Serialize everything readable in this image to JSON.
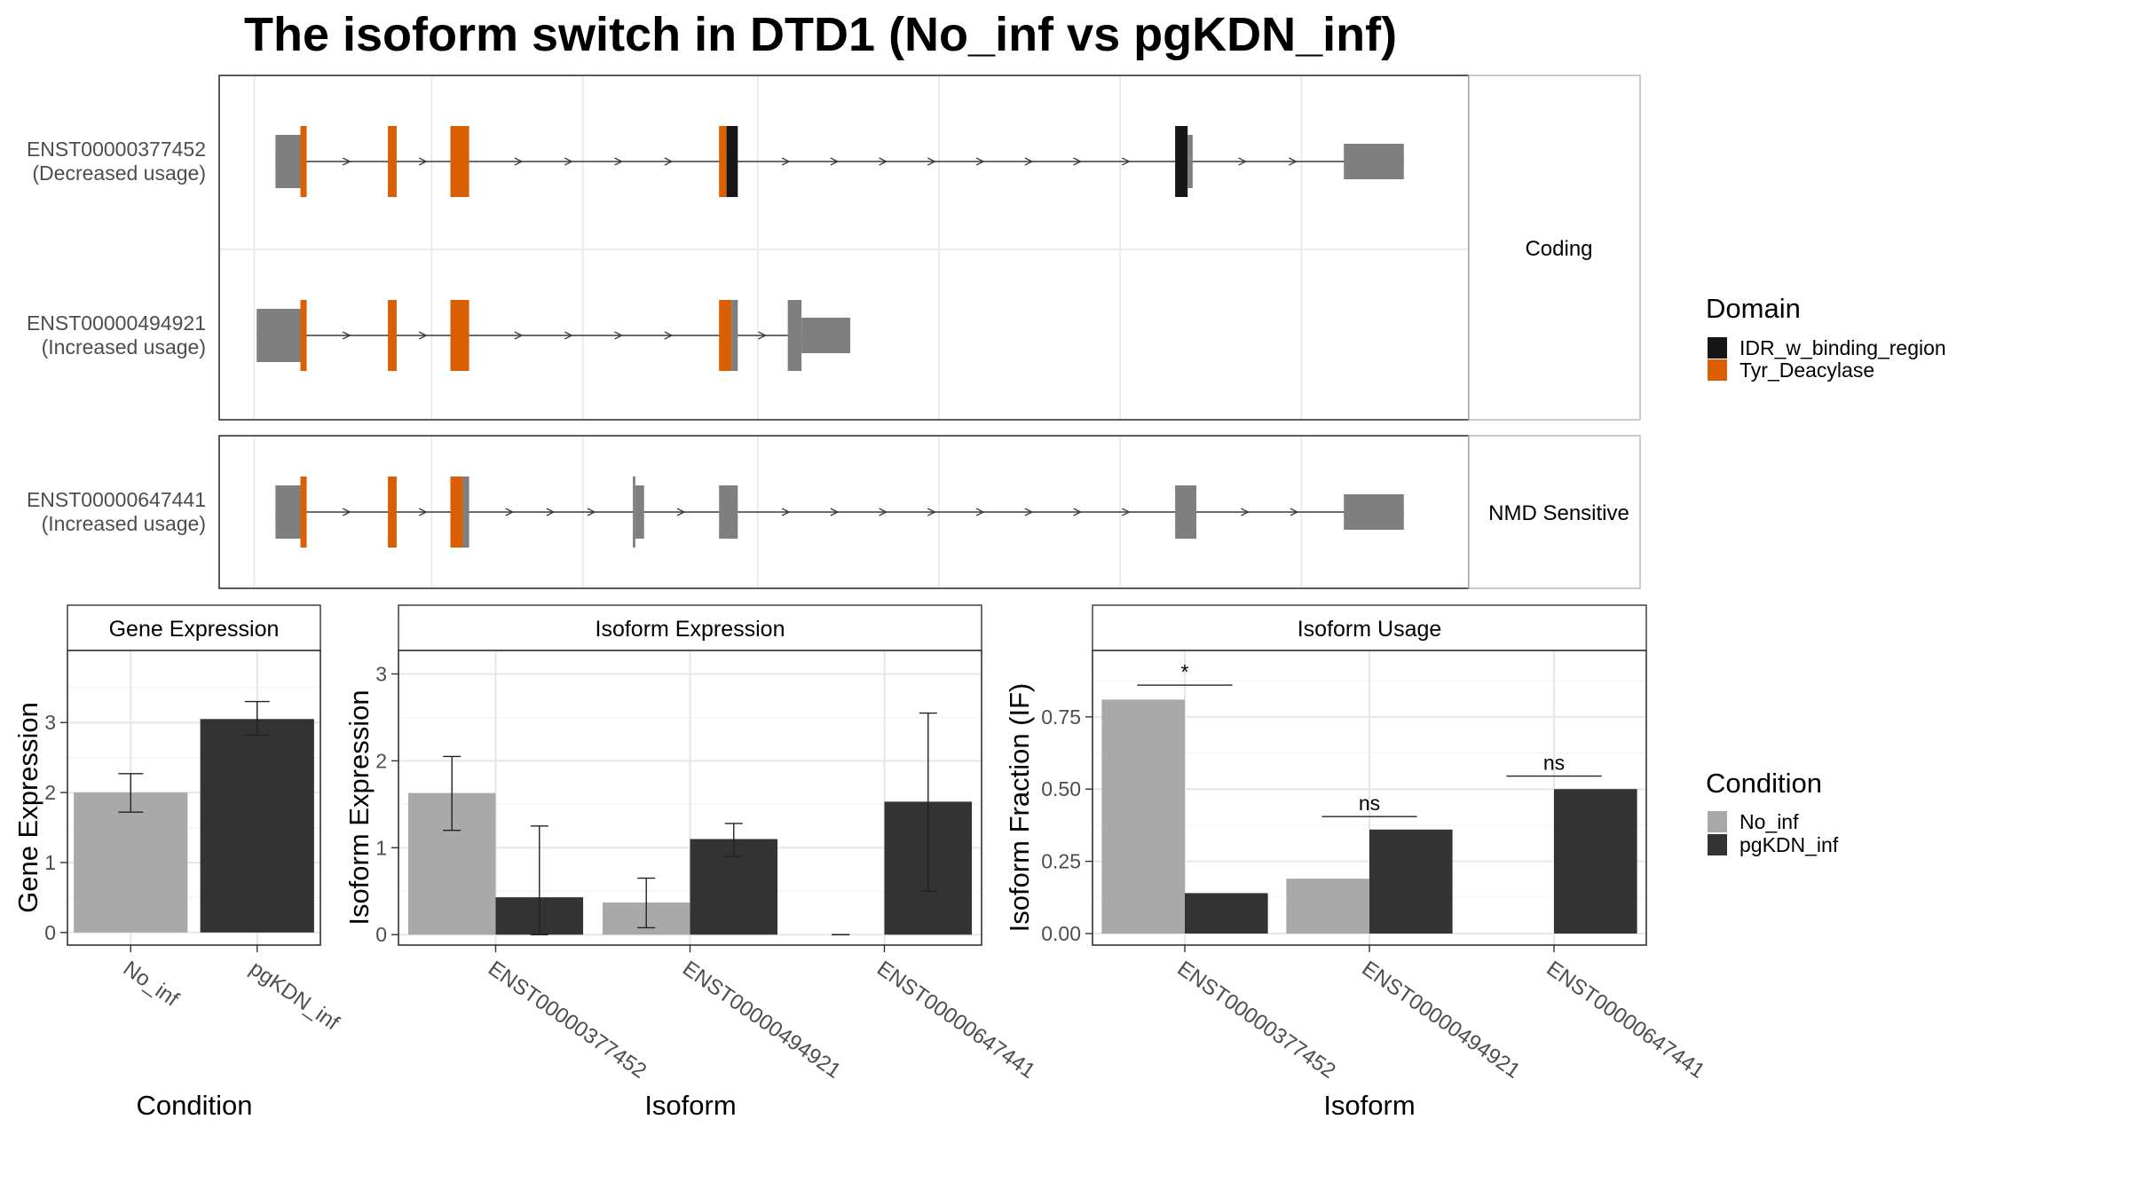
{
  "chart_data": {
    "type": "composite",
    "title": "The isoform switch in DTD1 (No_inf vs pgKDN_inf)",
    "colors": {
      "No_inf": "#a9a9a9",
      "pgKDN_inf": "#333333",
      "IDR_w_binding_region": "#161616",
      "Tyr_Deacylase": "#d95f02",
      "exon": "#7f7f7f"
    },
    "structure": {
      "facets": [
        {
          "label": "Coding",
          "isoforms": [
            {
              "name": "ENST00000377452",
              "usage": "(Decreased usage)",
              "exons": [
                {
                  "start": 0.045,
                  "end": 0.065,
                  "kind": "utr"
                },
                {
                  "start": 0.065,
                  "end": 0.07,
                  "kind": "cds",
                  "domain": "Tyr_Deacylase"
                },
                {
                  "start": 0.135,
                  "end": 0.142,
                  "kind": "cds",
                  "domain": "Tyr_Deacylase"
                },
                {
                  "start": 0.185,
                  "end": 0.2,
                  "kind": "cds",
                  "domain": "Tyr_Deacylase"
                },
                {
                  "start": 0.4,
                  "end": 0.406,
                  "kind": "cds",
                  "domain": "Tyr_Deacylase"
                },
                {
                  "start": 0.406,
                  "end": 0.415,
                  "kind": "cds",
                  "domain": "IDR_w_binding_region"
                },
                {
                  "start": 0.765,
                  "end": 0.775,
                  "kind": "cds",
                  "domain": "IDR_w_binding_region"
                },
                {
                  "start": 0.775,
                  "end": 0.779,
                  "kind": "utr"
                },
                {
                  "start": 0.9,
                  "end": 0.948,
                  "kind": "utr3"
                }
              ]
            },
            {
              "name": "ENST00000494921",
              "usage": "(Increased usage)",
              "exons": [
                {
                  "start": 0.03,
                  "end": 0.065,
                  "kind": "utr"
                },
                {
                  "start": 0.065,
                  "end": 0.07,
                  "kind": "cds",
                  "domain": "Tyr_Deacylase"
                },
                {
                  "start": 0.135,
                  "end": 0.142,
                  "kind": "cds",
                  "domain": "Tyr_Deacylase"
                },
                {
                  "start": 0.185,
                  "end": 0.2,
                  "kind": "cds",
                  "domain": "Tyr_Deacylase"
                },
                {
                  "start": 0.4,
                  "end": 0.41,
                  "kind": "cds",
                  "domain": "Tyr_Deacylase"
                },
                {
                  "start": 0.41,
                  "end": 0.415,
                  "kind": "cds"
                },
                {
                  "start": 0.455,
                  "end": 0.466,
                  "kind": "cds"
                },
                {
                  "start": 0.466,
                  "end": 0.505,
                  "kind": "utr3"
                }
              ]
            }
          ]
        },
        {
          "label": "NMD Sensitive",
          "isoforms": [
            {
              "name": "ENST00000647441",
              "usage": "(Increased usage)",
              "exons": [
                {
                  "start": 0.045,
                  "end": 0.065,
                  "kind": "utr"
                },
                {
                  "start": 0.065,
                  "end": 0.07,
                  "kind": "cds",
                  "domain": "Tyr_Deacylase"
                },
                {
                  "start": 0.135,
                  "end": 0.142,
                  "kind": "cds",
                  "domain": "Tyr_Deacylase"
                },
                {
                  "start": 0.185,
                  "end": 0.195,
                  "kind": "cds",
                  "domain": "Tyr_Deacylase"
                },
                {
                  "start": 0.195,
                  "end": 0.2,
                  "kind": "cds"
                },
                {
                  "start": 0.331,
                  "end": 0.333,
                  "kind": "cds"
                },
                {
                  "start": 0.333,
                  "end": 0.34,
                  "kind": "utr"
                },
                {
                  "start": 0.4,
                  "end": 0.415,
                  "kind": "utr"
                },
                {
                  "start": 0.765,
                  "end": 0.782,
                  "kind": "utr"
                },
                {
                  "start": 0.9,
                  "end": 0.948,
                  "kind": "utr3"
                }
              ]
            }
          ]
        }
      ]
    },
    "legends": {
      "domain": {
        "title": "Domain",
        "items": [
          "IDR_w_binding_region",
          "Tyr_Deacylase"
        ]
      },
      "condition": {
        "title": "Condition",
        "items": [
          "No_inf",
          "pgKDN_inf"
        ]
      }
    },
    "panels": [
      {
        "type": "bar",
        "strip": "Gene Expression",
        "xlabel": "Condition",
        "ylabel": "Gene Expression",
        "categories": [
          "No_inf",
          "pgKDN_inf"
        ],
        "ylim": [
          -0.18,
          4.03
        ],
        "yticks": [
          0,
          1,
          2,
          3
        ],
        "bars": [
          {
            "category": "No_inf",
            "condition": "No_inf",
            "value": 2.0,
            "err": [
              1.72,
              2.27
            ]
          },
          {
            "category": "pgKDN_inf",
            "condition": "pgKDN_inf",
            "value": 3.05,
            "err": [
              2.82,
              3.3
            ]
          }
        ]
      },
      {
        "type": "bar",
        "strip": "Isoform Expression",
        "xlabel": "Isoform",
        "ylabel": "Isoform Expression",
        "categories": [
          "ENST00000377452",
          "ENST00000494921",
          "ENST00000647441"
        ],
        "ylim": [
          -0.12,
          3.27
        ],
        "yticks": [
          0,
          1,
          2,
          3
        ],
        "series": [
          {
            "name": "No_inf",
            "values": [
              1.63,
              0.37,
              0.0
            ],
            "err": [
              [
                1.2,
                2.05
              ],
              [
                0.08,
                0.65
              ],
              [
                0.0,
                0.0
              ]
            ]
          },
          {
            "name": "pgKDN_inf",
            "values": [
              0.43,
              1.1,
              1.53
            ],
            "err": [
              [
                0.0,
                1.25
              ],
              [
                0.9,
                1.28
              ],
              [
                0.5,
                2.55
              ]
            ]
          }
        ]
      },
      {
        "type": "bar",
        "strip": "Isoform Usage",
        "xlabel": "Isoform",
        "ylabel": "Isoform Fraction (IF)",
        "categories": [
          "ENST00000377452",
          "ENST00000494921",
          "ENST00000647441"
        ],
        "ylim": [
          -0.04,
          0.98
        ],
        "yticks": [
          0.0,
          0.25,
          0.5,
          0.75
        ],
        "ytick_labels": [
          "0.00",
          "0.25",
          "0.50",
          "0.75"
        ],
        "series": [
          {
            "name": "No_inf",
            "values": [
              0.81,
              0.19,
              0.0
            ]
          },
          {
            "name": "pgKDN_inf",
            "values": [
              0.14,
              0.36,
              0.5
            ]
          }
        ],
        "significance": [
          {
            "category": "ENST00000377452",
            "label": "*",
            "y": 0.86
          },
          {
            "category": "ENST00000494921",
            "label": "ns",
            "y": 0.405
          },
          {
            "category": "ENST00000647441",
            "label": "ns",
            "y": 0.545
          }
        ]
      }
    ]
  }
}
